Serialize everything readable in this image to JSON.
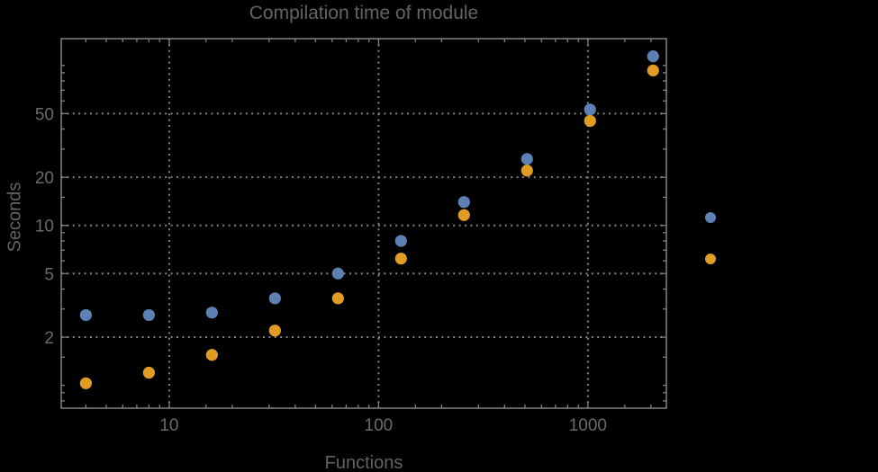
{
  "title": "Compilation time of module",
  "colors": {
    "background": "#000000",
    "frame": "#828282",
    "grid": "#848484",
    "text": "#636363",
    "series_blue": "#5E81B5",
    "series_orange": "#E19C24"
  },
  "chart_data": {
    "type": "scatter",
    "title": "Compilation time of module",
    "xlabel": "Functions",
    "ylabel": "Seconds",
    "x_scale": "log",
    "y_scale": "log",
    "grid": true,
    "x": [
      4,
      8,
      16,
      32,
      64,
      128,
      256,
      512,
      1024,
      2048
    ],
    "series": [
      {
        "name": "blue",
        "color": "#5E81B5",
        "values": [
          2.75,
          2.75,
          2.85,
          3.5,
          5.0,
          8.0,
          14.0,
          26,
          53,
          114
        ]
      },
      {
        "name": "orange",
        "color": "#E19C24",
        "values": [
          1.03,
          1.2,
          1.55,
          2.2,
          3.5,
          6.2,
          11.6,
          22,
          45,
          93
        ]
      }
    ],
    "x_tick_labels": [
      10,
      100,
      1000
    ],
    "y_tick_labels": [
      2,
      5,
      10,
      20,
      50
    ],
    "xlim": [
      3.05,
      2370
    ],
    "ylim": [
      0.72,
      147
    ],
    "legend_position": "right-outside",
    "legend_markers": [
      {
        "series": "blue",
        "color": "#5E81B5",
        "label": ""
      },
      {
        "series": "orange",
        "color": "#E19C24",
        "label": ""
      }
    ]
  }
}
